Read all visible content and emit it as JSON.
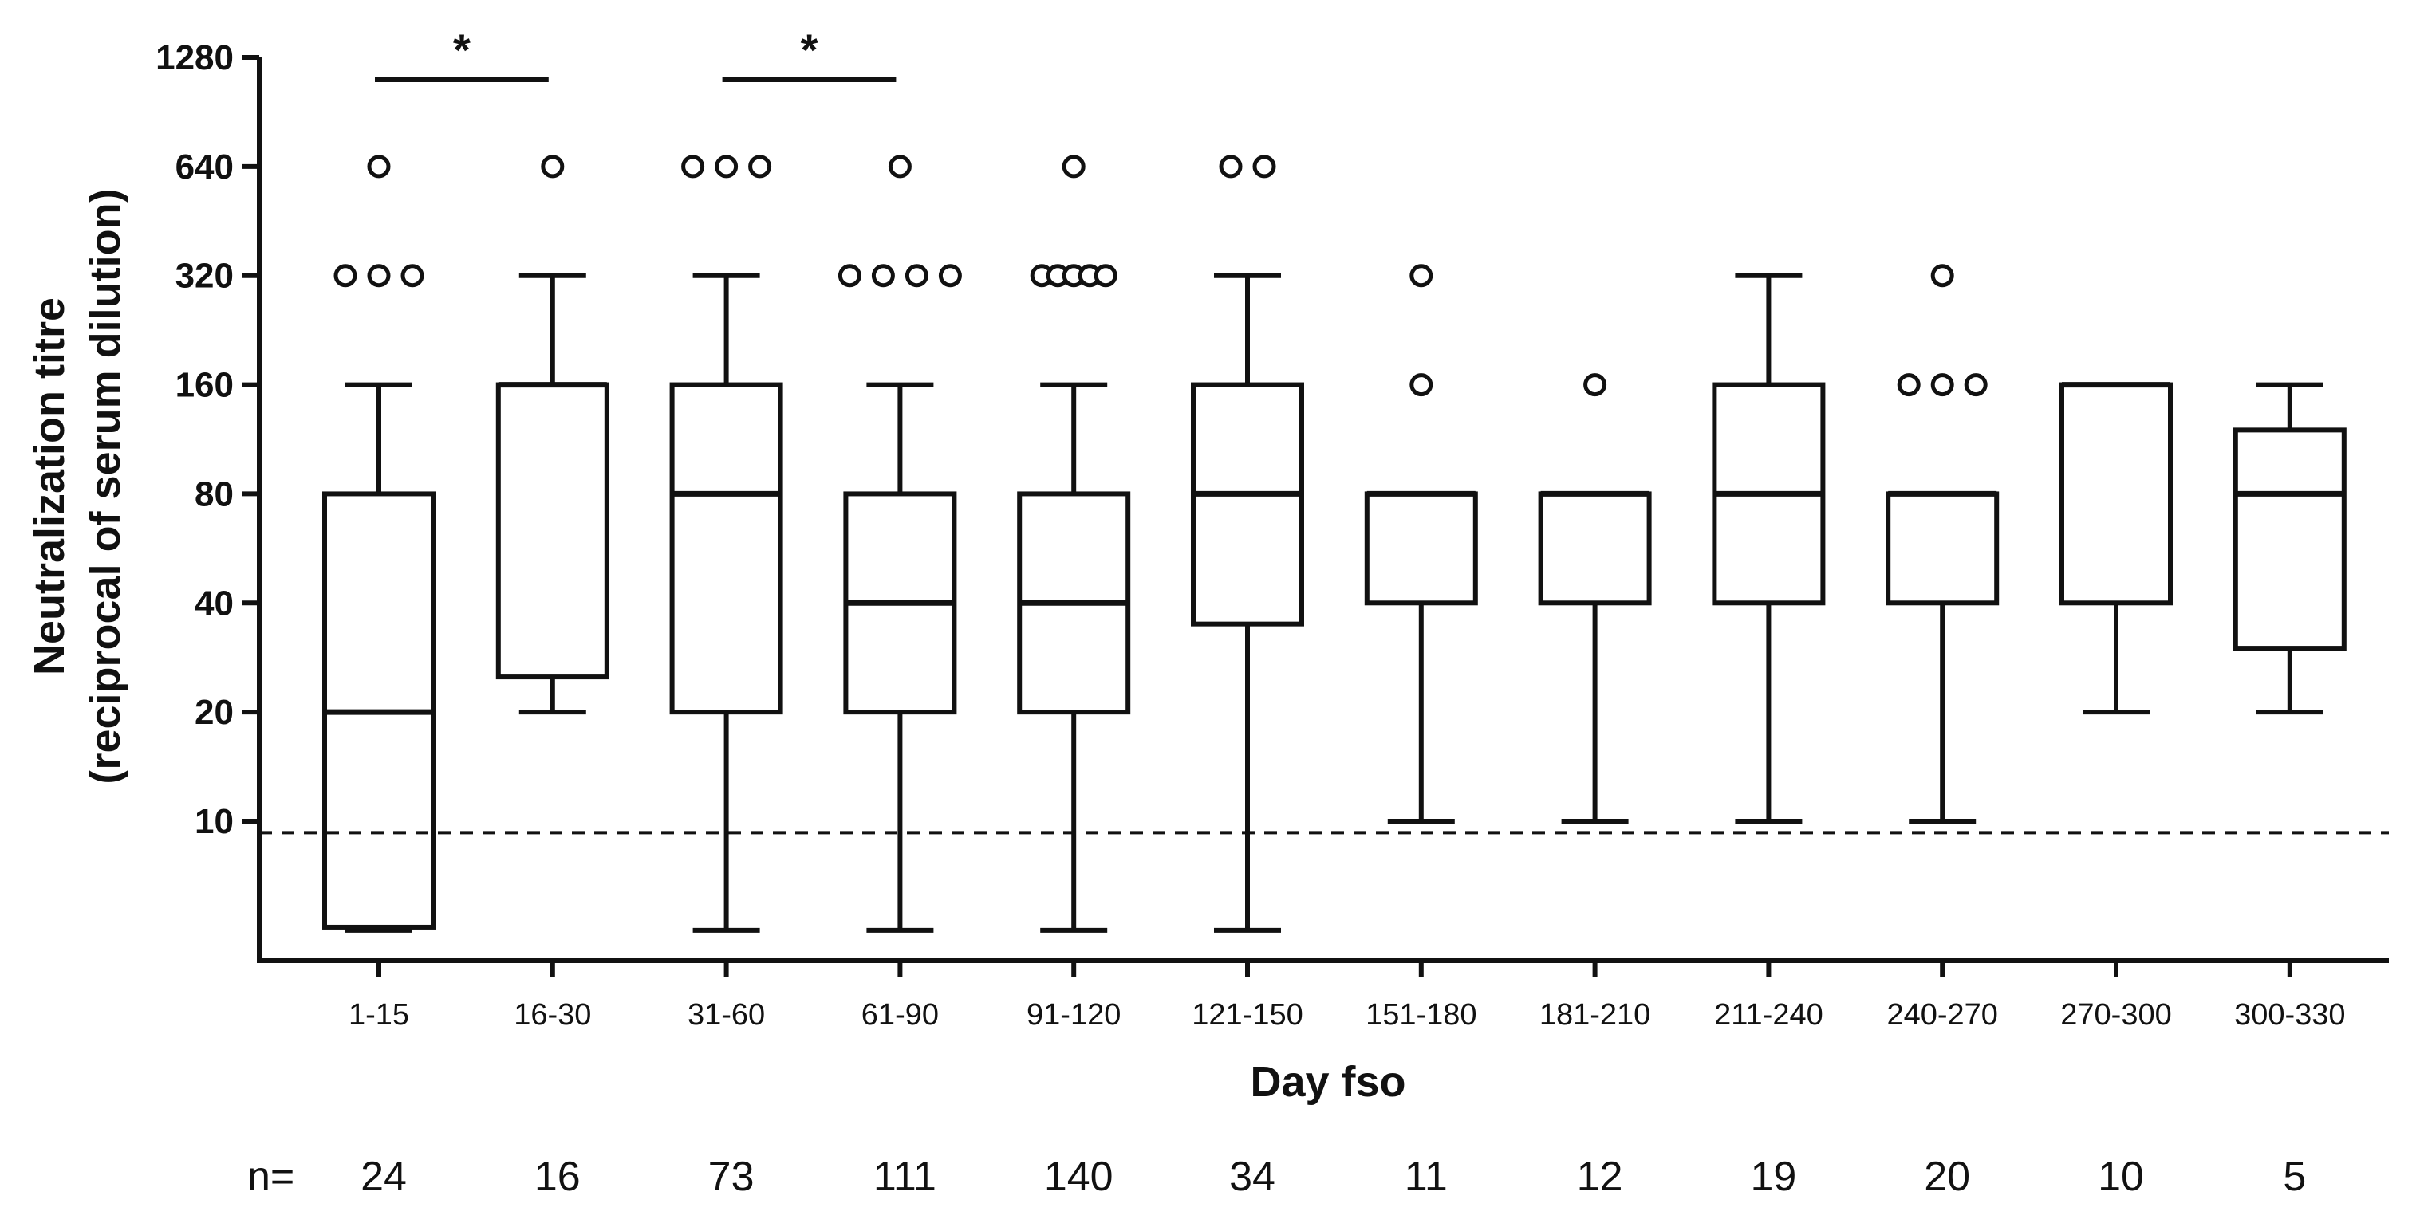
{
  "chart_data": {
    "type": "box",
    "title": "",
    "xlabel": "Day fso",
    "ylabel_line1": "Neutralization titre",
    "ylabel_line2": "(reciprocal of serum dilution)",
    "y_scale": "log2",
    "ylim": [
      3.2,
      1280
    ],
    "y_ticks": [
      {
        "value": 10,
        "label": "10"
      },
      {
        "value": 20,
        "label": "20"
      },
      {
        "value": 40,
        "label": "40"
      },
      {
        "value": 80,
        "label": "80"
      },
      {
        "value": 160,
        "label": "160"
      },
      {
        "value": 320,
        "label": "320"
      },
      {
        "value": 640,
        "label": "640"
      },
      {
        "value": 1280,
        "label": "1280"
      }
    ],
    "threshold_line": {
      "value": 9.3,
      "style": "dashed"
    },
    "categories": [
      "1-15",
      "16-30",
      "31-60",
      "61-90",
      "91-120",
      "121-150",
      "151-180",
      "181-210",
      "211-240",
      "240-270",
      "270-300",
      "300-330"
    ],
    "n_prefix": "n=",
    "n_values": [
      "24",
      "16",
      "73",
      "111",
      "140",
      "34",
      "11",
      "12",
      "19",
      "20",
      "10",
      "5"
    ],
    "boxes": [
      {
        "category": "1-15",
        "whisker_low": 5,
        "q1": 5.1,
        "median": 20,
        "q3": 80,
        "whisker_high": 160,
        "outliers": [
          320,
          320,
          320,
          640
        ]
      },
      {
        "category": "16-30",
        "whisker_low": 20,
        "q1": 25,
        "median": 160,
        "q3": 160,
        "whisker_high": 320,
        "outliers": [
          640
        ]
      },
      {
        "category": "31-60",
        "whisker_low": 5,
        "q1": 20,
        "median": 80,
        "q3": 160,
        "whisker_high": 320,
        "outliers": [
          640,
          640,
          640
        ]
      },
      {
        "category": "61-90",
        "whisker_low": 5,
        "q1": 20,
        "median": 40,
        "q3": 80,
        "whisker_high": 160,
        "outliers": [
          320,
          320,
          320,
          320,
          640
        ]
      },
      {
        "category": "91-120",
        "whisker_low": 5,
        "q1": 20,
        "median": 40,
        "q3": 80,
        "whisker_high": 160,
        "outliers": [
          320,
          320,
          320,
          320,
          320,
          640
        ]
      },
      {
        "category": "121-150",
        "whisker_low": 5,
        "q1": 35,
        "median": 80,
        "q3": 160,
        "whisker_high": 320,
        "outliers": [
          640,
          640
        ]
      },
      {
        "category": "151-180",
        "whisker_low": 10,
        "q1": 40,
        "median": 80,
        "q3": 80,
        "whisker_high": 80,
        "outliers": [
          160,
          320
        ]
      },
      {
        "category": "181-210",
        "whisker_low": 10,
        "q1": 40,
        "median": 80,
        "q3": 80,
        "whisker_high": 80,
        "outliers": [
          160
        ]
      },
      {
        "category": "211-240",
        "whisker_low": 10,
        "q1": 40,
        "median": 80,
        "q3": 160,
        "whisker_high": 320,
        "outliers": []
      },
      {
        "category": "240-270",
        "whisker_low": 10,
        "q1": 40,
        "median": 80,
        "q3": 80,
        "whisker_high": 80,
        "outliers": [
          160,
          160,
          160,
          320
        ]
      },
      {
        "category": "270-300",
        "whisker_low": 20,
        "q1": 40,
        "median": 160,
        "q3": 160,
        "whisker_high": 160,
        "outliers": []
      },
      {
        "category": "300-330",
        "whisker_low": 20,
        "q1": 30,
        "median": 80,
        "q3": 120,
        "whisker_high": 160,
        "outliers": []
      }
    ],
    "significance": [
      {
        "from": "1-15",
        "to": "16-30",
        "label": "*"
      },
      {
        "from": "31-60",
        "to": "61-90",
        "label": "*"
      }
    ]
  }
}
